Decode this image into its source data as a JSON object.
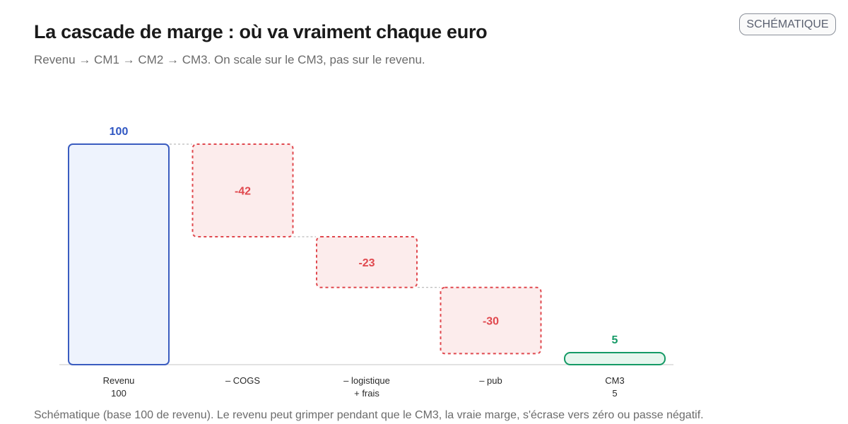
{
  "header": {
    "title": "La cascade de marge : où va vraiment chaque euro",
    "subtitle": "Revenu → CM1 → CM2 → CM3. On scale sur le CM3, pas sur le revenu.",
    "badge": "SCHÉMATIQUE"
  },
  "footnote": "Schématique (base 100 de revenu). Le revenu peut grimper pendant que le CM3, la vraie marge, s'écrase vers zéro ou passe négatif.",
  "colors": {
    "total_stroke": "#3a5cc0",
    "total_fill": "#eef3fd",
    "total_label": "#2f56c2",
    "negative_stroke": "#e0484e",
    "negative_fill": "#fcecec",
    "negative_label": "#e0484e",
    "result_stroke": "#159a66",
    "result_fill": "#e6f6ee",
    "result_label": "#159a66",
    "connector": "#a9a9a9",
    "baseline": "#d9d9d9"
  },
  "chart_data": {
    "type": "waterfall",
    "title": "La cascade de marge : où va vraiment chaque euro",
    "ylim": [
      0,
      100
    ],
    "steps": [
      {
        "category_lines": [
          "Revenu",
          "100"
        ],
        "kind": "total",
        "value": 100,
        "label": "100"
      },
      {
        "category_lines": [
          "– COGS"
        ],
        "kind": "delta",
        "value": -42,
        "label": "-42"
      },
      {
        "category_lines": [
          "– logistique",
          "+ frais"
        ],
        "kind": "delta",
        "value": -23,
        "label": "-23"
      },
      {
        "category_lines": [
          "– pub"
        ],
        "kind": "delta",
        "value": -30,
        "label": "-30"
      },
      {
        "category_lines": [
          "CM3",
          "5"
        ],
        "kind": "result",
        "value": 5,
        "label": "5"
      }
    ]
  }
}
